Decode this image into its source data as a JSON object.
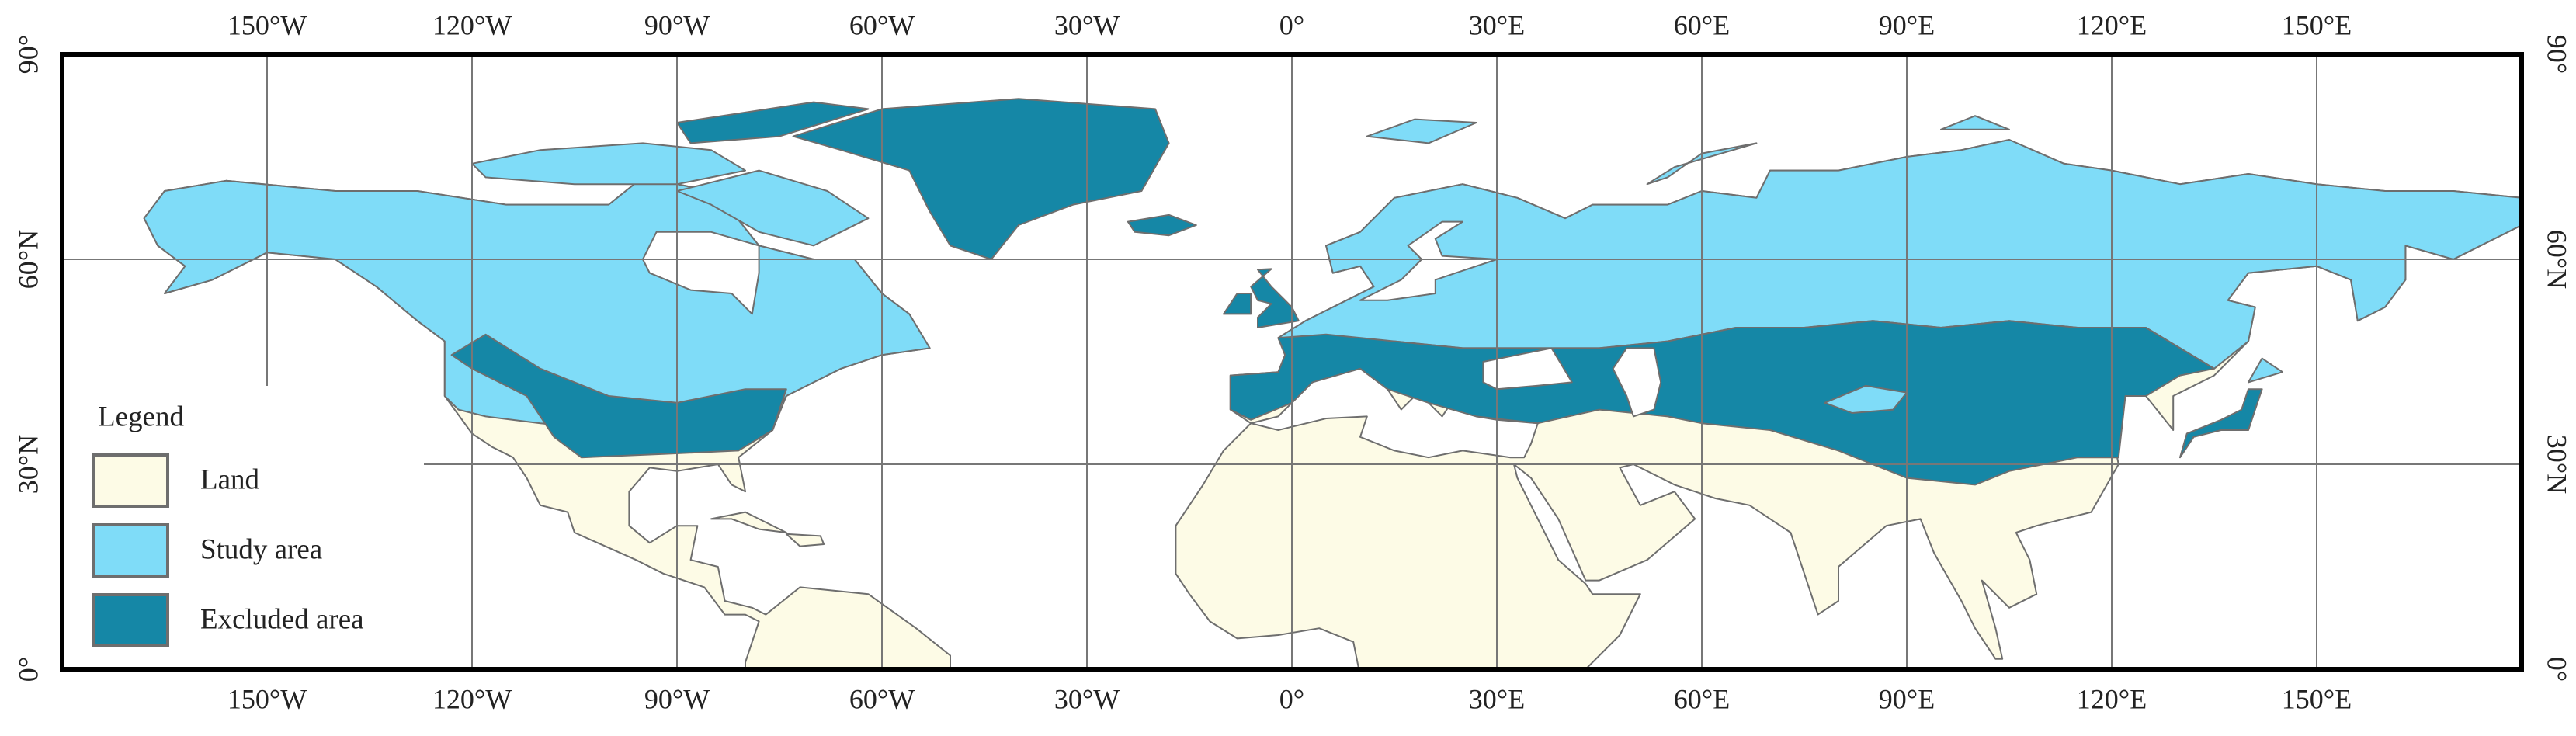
{
  "map": {
    "longitude_labels": [
      "150°W",
      "120°W",
      "90°W",
      "60°W",
      "30°W",
      "0°",
      "30°E",
      "60°E",
      "90°E",
      "120°E",
      "150°E"
    ],
    "latitude_labels": [
      "90°",
      "60°N",
      "30°N",
      "0°"
    ]
  },
  "legend": {
    "title": "Legend",
    "items": [
      {
        "label": "Land",
        "color": "#fdfbe6"
      },
      {
        "label": "Study area",
        "color": "#7fdcf8"
      },
      {
        "label": "Excluded area",
        "color": "#1587a6"
      }
    ]
  }
}
